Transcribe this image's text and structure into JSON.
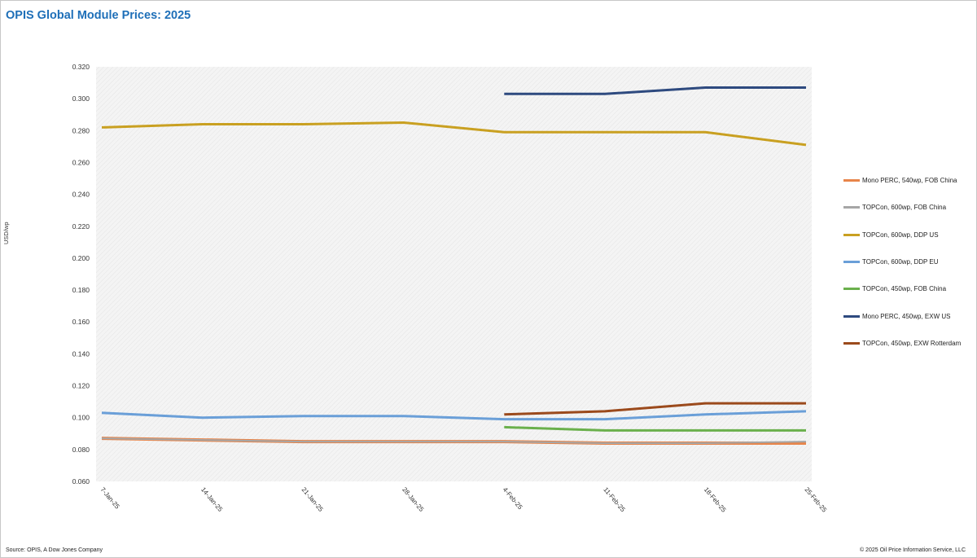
{
  "title": "OPIS Global Module Prices: 2025",
  "source": "Source: OPIS, A Dow Jones Company",
  "copyright": "© 2025 Oil Price Information Service, LLC",
  "chart_data": {
    "type": "line",
    "title": "OPIS Global Module Prices: 2025",
    "xlabel": "",
    "ylabel": "USD/wp",
    "ylim": [
      0.06,
      0.32
    ],
    "grid": "plot area hatched background, no gridlines",
    "legend_placement": "right",
    "categories": [
      "7-Jan-25",
      "14-Jan-25",
      "21-Jan-25",
      "28-Jan-25",
      "4-Feb-25",
      "11-Feb-25",
      "18-Feb-25",
      "25-Feb-25"
    ],
    "y_ticks": [
      "0.060",
      "0.080",
      "0.100",
      "0.120",
      "0.140",
      "0.160",
      "0.180",
      "0.200",
      "0.220",
      "0.240",
      "0.260",
      "0.280",
      "0.300",
      "0.320"
    ],
    "series": [
      {
        "name": "Mono PERC, 540wp, FOB China",
        "color": "#e8854a",
        "width": 4,
        "values": [
          0.087,
          0.086,
          0.085,
          0.085,
          0.085,
          0.084,
          0.084,
          0.084
        ]
      },
      {
        "name": "TOPCon, 600wp, FOB China",
        "color": "#a6a6a6",
        "width": 2,
        "values": [
          0.087,
          0.086,
          0.085,
          0.085,
          0.085,
          0.084,
          0.084,
          0.085
        ]
      },
      {
        "name": "TOPCon, 600wp, DDP US",
        "color": "#c9a021",
        "width": 3,
        "values": [
          0.282,
          0.284,
          0.284,
          0.285,
          0.279,
          0.279,
          0.279,
          0.271
        ]
      },
      {
        "name": "TOPCon, 600wp, DDP EU",
        "color": "#6a9fd8",
        "width": 3,
        "values": [
          0.103,
          0.1,
          0.101,
          0.101,
          0.099,
          0.099,
          0.102,
          0.104
        ]
      },
      {
        "name": "TOPCon, 450wp, FOB China",
        "color": "#6ab04c",
        "width": 3,
        "values": [
          null,
          null,
          null,
          null,
          0.094,
          0.092,
          0.092,
          0.092
        ]
      },
      {
        "name": "Mono PERC, 450wp, EXW US",
        "color": "#2e4a7f",
        "width": 3,
        "values": [
          null,
          null,
          null,
          null,
          0.303,
          0.303,
          0.307,
          0.307
        ]
      },
      {
        "name": "TOPCon, 450wp, EXW Rotterdam",
        "color": "#9b4a1c",
        "width": 3,
        "values": [
          null,
          null,
          null,
          null,
          0.102,
          0.104,
          0.109,
          0.109
        ]
      }
    ]
  }
}
